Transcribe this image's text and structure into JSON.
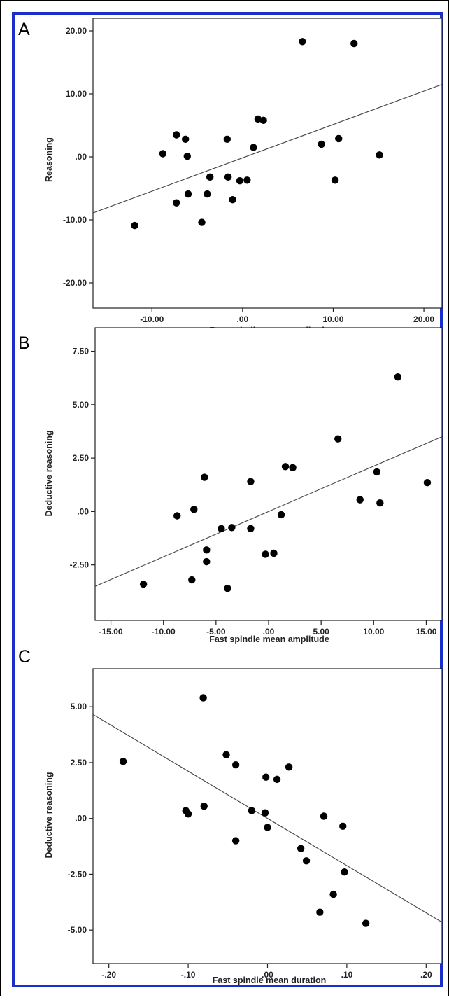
{
  "chart_data": [
    {
      "type": "scatter",
      "panel_label": "A",
      "xlabel": "Fast spindle mean amplitude",
      "ylabel": "Reasoning",
      "xlim": [
        -16.5,
        22
      ],
      "ylim": [
        -24,
        22
      ],
      "xticks": [
        -10,
        0,
        10,
        20
      ],
      "xtick_labels": [
        "-10.00",
        ".00",
        "10.00",
        "20.00"
      ],
      "yticks": [
        -20,
        -10,
        0,
        10,
        20
      ],
      "ytick_labels": [
        "-20.00",
        "-10.00",
        ".00",
        "10.00",
        "20.00"
      ],
      "grid": false,
      "fit_line": {
        "x": [
          -16.5,
          22
        ],
        "y": [
          -8.9,
          11.5
        ]
      },
      "points": [
        {
          "x": -11.9,
          "y": -10.9
        },
        {
          "x": -8.8,
          "y": 0.5
        },
        {
          "x": -7.3,
          "y": 3.5
        },
        {
          "x": -7.3,
          "y": -7.3
        },
        {
          "x": -6.3,
          "y": 2.8
        },
        {
          "x": -6.1,
          "y": 0.1
        },
        {
          "x": -6.0,
          "y": -5.9
        },
        {
          "x": -4.5,
          "y": -10.4
        },
        {
          "x": -3.9,
          "y": -5.9
        },
        {
          "x": -3.6,
          "y": -3.2
        },
        {
          "x": -1.7,
          "y": 2.8
        },
        {
          "x": -1.6,
          "y": -3.2
        },
        {
          "x": -1.1,
          "y": -6.8
        },
        {
          "x": -0.3,
          "y": -3.8
        },
        {
          "x": 0.5,
          "y": -3.7
        },
        {
          "x": 1.2,
          "y": 1.5
        },
        {
          "x": 1.7,
          "y": 6.0
        },
        {
          "x": 2.3,
          "y": 5.8
        },
        {
          "x": 6.6,
          "y": 18.3
        },
        {
          "x": 8.7,
          "y": 2.0
        },
        {
          "x": 10.2,
          "y": -3.7
        },
        {
          "x": 10.6,
          "y": 2.9
        },
        {
          "x": 12.3,
          "y": 18.0
        },
        {
          "x": 15.1,
          "y": 0.3
        }
      ]
    },
    {
      "type": "scatter",
      "panel_label": "B",
      "xlabel": "Fast spindle mean amplitude",
      "ylabel": "Deductive reasoning",
      "xlim": [
        -16.5,
        16.5
      ],
      "ylim": [
        -5.1,
        8.6
      ],
      "xticks": [
        -15,
        -10,
        -5,
        0,
        5,
        10,
        15
      ],
      "xtick_labels": [
        "-15.00",
        "-10.00",
        "-5.00",
        ".00",
        "5.00",
        "10.00",
        "15.00"
      ],
      "yticks": [
        -2.5,
        0,
        2.5,
        5,
        7.5
      ],
      "ytick_labels": [
        "-2.50",
        ".00",
        "2.50",
        "5.00",
        "7.50"
      ],
      "grid": false,
      "fit_line": {
        "x": [
          -16.5,
          16.5
        ],
        "y": [
          -3.5,
          3.5
        ]
      },
      "points": [
        {
          "x": -11.9,
          "y": -3.4
        },
        {
          "x": -8.7,
          "y": -0.2
        },
        {
          "x": -7.3,
          "y": -3.2
        },
        {
          "x": -7.1,
          "y": 0.1
        },
        {
          "x": -6.1,
          "y": 1.6
        },
        {
          "x": -5.9,
          "y": -1.8
        },
        {
          "x": -5.9,
          "y": -2.35
        },
        {
          "x": -4.5,
          "y": -0.8
        },
        {
          "x": -3.9,
          "y": -3.6
        },
        {
          "x": -3.5,
          "y": -0.75
        },
        {
          "x": -1.7,
          "y": 1.4
        },
        {
          "x": -1.7,
          "y": -0.8
        },
        {
          "x": -0.3,
          "y": -2.0
        },
        {
          "x": 0.5,
          "y": -1.95
        },
        {
          "x": 1.2,
          "y": -0.15
        },
        {
          "x": 1.6,
          "y": 2.1
        },
        {
          "x": 2.3,
          "y": 2.05
        },
        {
          "x": 6.6,
          "y": 3.4
        },
        {
          "x": 8.7,
          "y": 0.55
        },
        {
          "x": 10.3,
          "y": 1.85
        },
        {
          "x": 10.6,
          "y": 0.4
        },
        {
          "x": 12.3,
          "y": 6.3
        },
        {
          "x": 15.1,
          "y": 1.35
        }
      ]
    },
    {
      "type": "scatter",
      "panel_label": "C",
      "xlabel": "Fast spindle mean duration",
      "ylabel": "Deductive reasoning",
      "xlim": [
        -0.22,
        0.22
      ],
      "ylim": [
        -6.5,
        6.7
      ],
      "xticks": [
        -0.2,
        -0.1,
        0,
        0.1,
        0.2
      ],
      "xtick_labels": [
        "-.20",
        "-.10",
        ".00",
        ".10",
        ".20"
      ],
      "yticks": [
        -5,
        -2.5,
        0,
        2.5,
        5
      ],
      "ytick_labels": [
        "-5.00",
        "-2.50",
        ".00",
        "2.50",
        "5.00"
      ],
      "grid": false,
      "fit_line": {
        "x": [
          -0.22,
          0.22
        ],
        "y": [
          4.65,
          -4.65
        ]
      },
      "points": [
        {
          "x": -0.182,
          "y": 2.55
        },
        {
          "x": -0.103,
          "y": 0.35
        },
        {
          "x": -0.1,
          "y": 0.2
        },
        {
          "x": -0.081,
          "y": 5.4
        },
        {
          "x": -0.08,
          "y": 0.55
        },
        {
          "x": -0.052,
          "y": 2.85
        },
        {
          "x": -0.04,
          "y": 2.4
        },
        {
          "x": -0.04,
          "y": -1.0
        },
        {
          "x": -0.02,
          "y": 0.35
        },
        {
          "x": -0.002,
          "y": 1.85
        },
        {
          "x": -0.003,
          "y": 0.25
        },
        {
          "x": 0.0,
          "y": -0.4
        },
        {
          "x": 0.012,
          "y": 1.75
        },
        {
          "x": 0.027,
          "y": 2.3
        },
        {
          "x": 0.042,
          "y": -1.35
        },
        {
          "x": 0.049,
          "y": -1.9
        },
        {
          "x": 0.066,
          "y": -4.2
        },
        {
          "x": 0.071,
          "y": 0.1
        },
        {
          "x": 0.083,
          "y": -3.4
        },
        {
          "x": 0.095,
          "y": -0.35
        },
        {
          "x": 0.097,
          "y": -2.4
        },
        {
          "x": 0.124,
          "y": -4.7
        }
      ]
    }
  ]
}
